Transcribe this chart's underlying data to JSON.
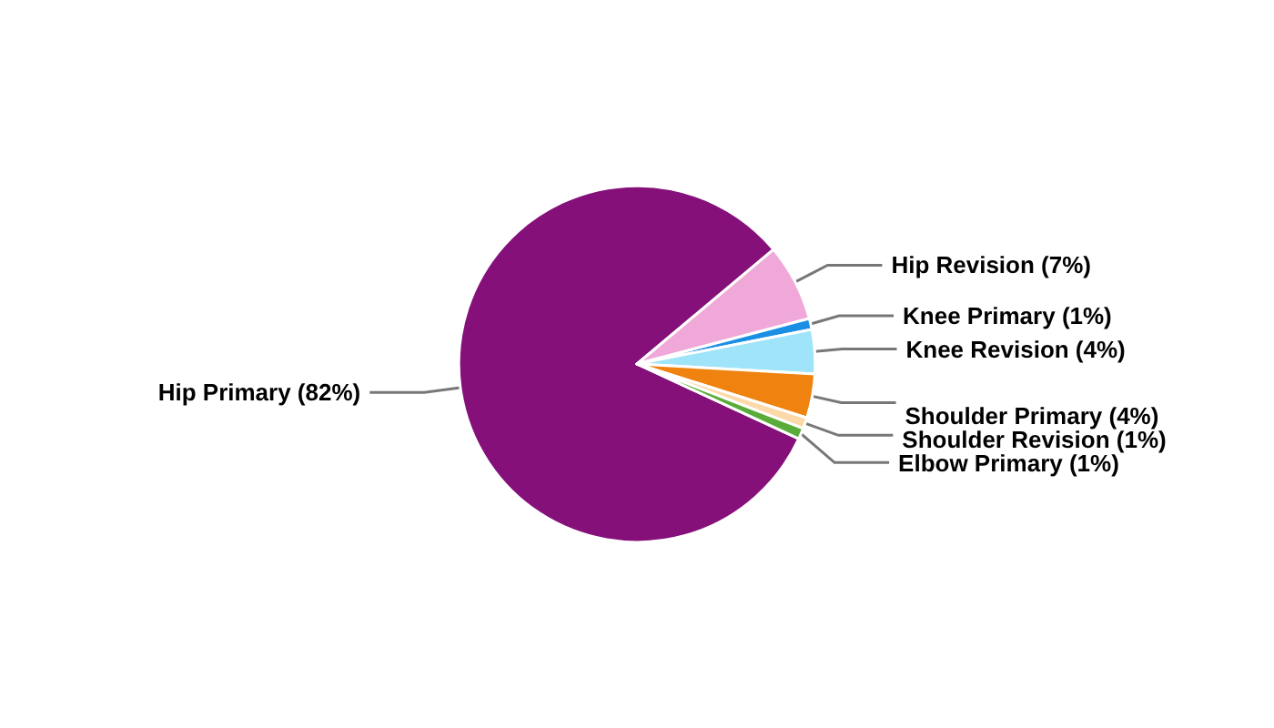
{
  "chart_data": {
    "type": "pie",
    "categories": [
      "Hip Primary (82%)",
      "Hip Revision (7%)",
      "Knee Primary (1%)",
      "Knee Revision (4%)",
      "Shoulder Primary (4%)",
      "Shoulder Revision (1%)",
      "Elbow Primary (1%)"
    ],
    "values": [
      82,
      7,
      1,
      4,
      4,
      1,
      1
    ],
    "colors": [
      "#85107a",
      "#f0a8d8",
      "#1a8fe3",
      "#a0e4fa",
      "#f0820f",
      "#fcd9a8",
      "#5aac3a"
    ],
    "legend": false
  }
}
